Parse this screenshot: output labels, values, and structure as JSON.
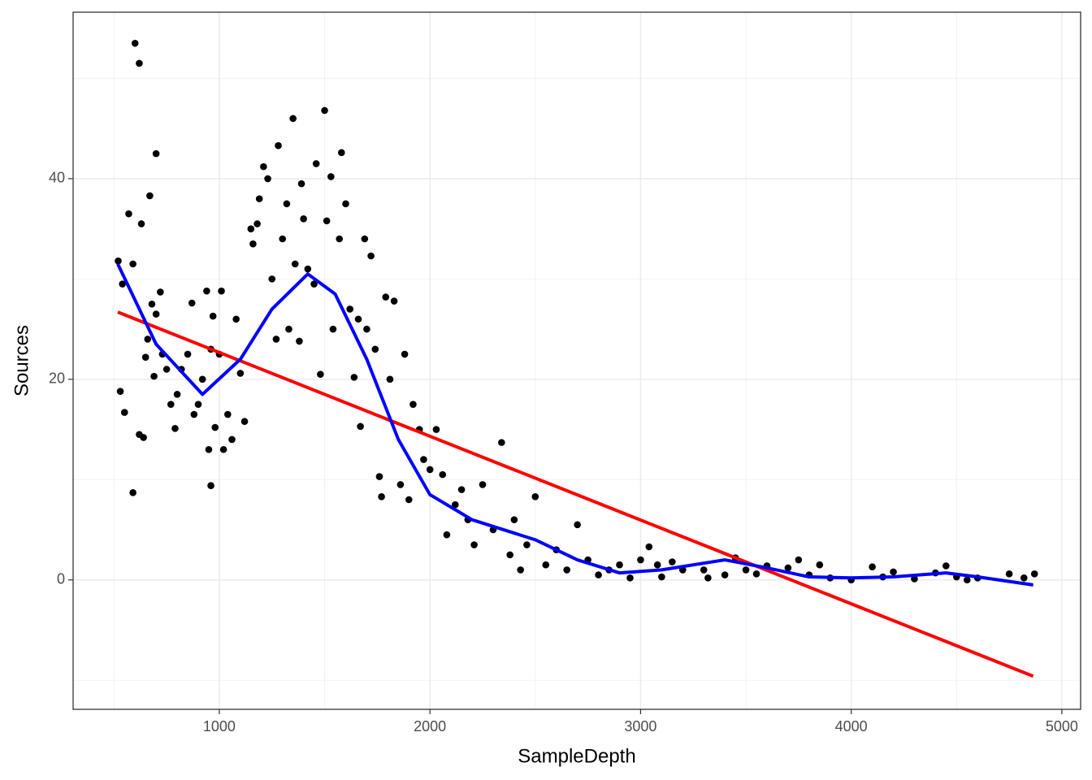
{
  "chart_data": {
    "type": "scatter",
    "x_label": "SampleDepth",
    "y_label": "Sources",
    "xlim": [
      306,
      5089
    ],
    "ylim": [
      -12.9,
      56.6
    ],
    "xticks": [
      1000,
      2000,
      3000,
      4000,
      5000
    ],
    "yticks": [
      0,
      20,
      40
    ],
    "xminor": [
      500,
      1500,
      2500,
      3500,
      4500
    ],
    "yminor": [
      -10,
      10,
      30,
      50
    ],
    "grid": true,
    "point_color": "#000000",
    "x": [
      600,
      620,
      570,
      700,
      670,
      630,
      520,
      590,
      540,
      530,
      550,
      590,
      620,
      640,
      650,
      660,
      680,
      700,
      720,
      690,
      730,
      750,
      770,
      790,
      800,
      820,
      850,
      870,
      880,
      900,
      920,
      940,
      960,
      970,
      980,
      950,
      960,
      1000,
      1010,
      1020,
      1040,
      1060,
      1080,
      1100,
      1120,
      1150,
      1160,
      1180,
      1190,
      1210,
      1230,
      1250,
      1270,
      1280,
      1300,
      1320,
      1330,
      1350,
      1360,
      1380,
      1390,
      1400,
      1420,
      1450,
      1460,
      1480,
      1500,
      1510,
      1530,
      1540,
      1570,
      1580,
      1600,
      1620,
      1640,
      1660,
      1670,
      1690,
      1700,
      1720,
      1740,
      1760,
      1770,
      1790,
      1810,
      1830,
      1860,
      1880,
      1900,
      1920,
      1950,
      1970,
      2000,
      2030,
      2060,
      2080,
      2120,
      2150,
      2180,
      2210,
      2250,
      2300,
      2340,
      2380,
      2400,
      2430,
      2460,
      2500,
      2550,
      2600,
      2650,
      2700,
      2750,
      2800,
      2850,
      2900,
      2950,
      3000,
      3040,
      3080,
      3100,
      3150,
      3200,
      3300,
      3320,
      3400,
      3450,
      3500,
      3550,
      3600,
      3700,
      3750,
      3800,
      3850,
      3900,
      4000,
      4100,
      4150,
      4200,
      4300,
      4400,
      4450,
      4500,
      4550,
      4600,
      4750,
      4820,
      4870
    ],
    "y": [
      53.5,
      51.5,
      36.5,
      42.5,
      38.3,
      35.5,
      31.8,
      31.5,
      29.5,
      18.8,
      16.7,
      8.7,
      14.5,
      14.2,
      22.2,
      24,
      27.5,
      26.5,
      28.7,
      20.3,
      22.5,
      21,
      17.5,
      15.1,
      18.5,
      21,
      22.5,
      27.6,
      16.5,
      17.5,
      20,
      28.8,
      23,
      26.3,
      15.2,
      13,
      9.4,
      22.5,
      28.8,
      13,
      16.5,
      14,
      26,
      20.6,
      15.8,
      35,
      33.5,
      35.5,
      38,
      41.2,
      40,
      30,
      24,
      43.3,
      34,
      37.5,
      25,
      46,
      31.5,
      23.8,
      39.5,
      36,
      31,
      29.5,
      41.5,
      20.5,
      46.8,
      35.8,
      40.2,
      25,
      34,
      42.6,
      37.5,
      27,
      20.2,
      26,
      15.3,
      34,
      25,
      32.3,
      23,
      10.3,
      8.3,
      28.2,
      20,
      27.8,
      9.5,
      22.5,
      8,
      17.5,
      15,
      12,
      11,
      15,
      10.5,
      4.5,
      7.5,
      9,
      6,
      3.5,
      9.5,
      5,
      13.7,
      2.5,
      6,
      1,
      3.5,
      8.3,
      1.5,
      3,
      1,
      5.5,
      2,
      0.5,
      1,
      1.5,
      0.2,
      2,
      3.3,
      1.5,
      0.3,
      1.8,
      1,
      1,
      0.2,
      0.5,
      2.2,
      1,
      0.6,
      1.4,
      1.2,
      2,
      0.5,
      1.5,
      0.2,
      0,
      1.3,
      0.3,
      0.8,
      0.1,
      0.7,
      1.4,
      0.3,
      0,
      0.2,
      0.6,
      0.2,
      0.6
    ],
    "lines": [
      {
        "color": "#ff0000",
        "x": [
          518,
          4864
        ],
        "y": [
          26.7,
          -9.6
        ]
      },
      {
        "color": "#0000ff",
        "x": [
          518,
          700,
          920,
          1100,
          1250,
          1420,
          1550,
          1700,
          1850,
          2000,
          2200,
          2500,
          2700,
          2900,
          3100,
          3400,
          3600,
          3800,
          4000,
          4200,
          4450,
          4600,
          4864
        ],
        "y": [
          31.5,
          23.5,
          18.5,
          22,
          27,
          30.5,
          28.5,
          22,
          14,
          8.5,
          6,
          4,
          2,
          0.7,
          1,
          2,
          1.2,
          0.3,
          0.2,
          0.3,
          0.7,
          0.3,
          -0.5
        ]
      }
    ]
  }
}
